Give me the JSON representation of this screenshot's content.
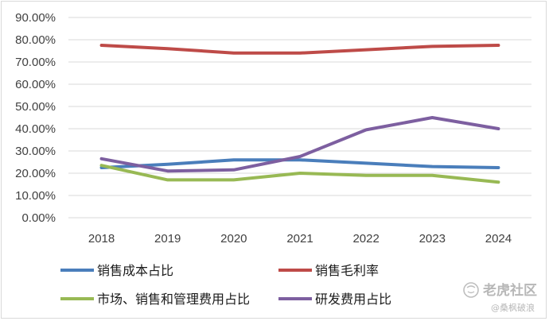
{
  "chart_data": {
    "type": "line",
    "title": "",
    "xlabel": "",
    "ylabel": "",
    "x": [
      "2018",
      "2019",
      "2020",
      "2021",
      "2022",
      "2023",
      "2024"
    ],
    "ylim": [
      0,
      90
    ],
    "y_ticks": [
      "0.00%",
      "10.00%",
      "20.00%",
      "30.00%",
      "40.00%",
      "50.00%",
      "60.00%",
      "70.00%",
      "80.00%",
      "90.00%"
    ],
    "grid": true,
    "legend_position": "bottom",
    "series": [
      {
        "name": "销售成本占比",
        "color": "#4a7ebb",
        "values": [
          22.5,
          24.0,
          26.0,
          26.0,
          24.5,
          23.0,
          22.5
        ]
      },
      {
        "name": "销售毛利率",
        "color": "#be4b48",
        "values": [
          77.5,
          76.0,
          74.0,
          74.0,
          75.5,
          77.0,
          77.5
        ]
      },
      {
        "name": "市场、销售和管理费用占比",
        "color": "#98b954",
        "values": [
          23.5,
          17.0,
          17.0,
          20.0,
          19.0,
          19.0,
          16.0
        ]
      },
      {
        "name": "研发费用占比",
        "color": "#7d5fa0",
        "values": [
          26.5,
          21.0,
          21.5,
          27.5,
          39.5,
          45.0,
          40.0
        ]
      }
    ]
  },
  "watermark": {
    "text": "老虎社区",
    "sub": "@桑枫破浪"
  }
}
